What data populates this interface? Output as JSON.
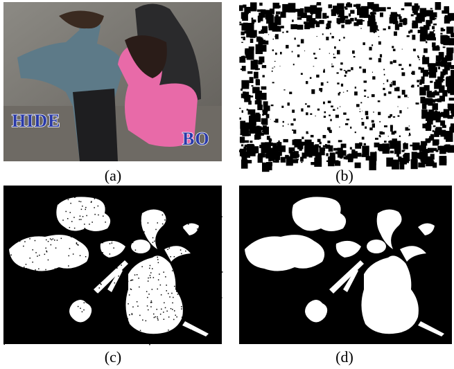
{
  "panels": [
    {
      "caption": "(a)",
      "overlay_texts": [
        "HIDE",
        "BO"
      ]
    },
    {
      "caption": "(b)"
    },
    {
      "caption": "(c)"
    },
    {
      "caption": "(d)"
    }
  ]
}
